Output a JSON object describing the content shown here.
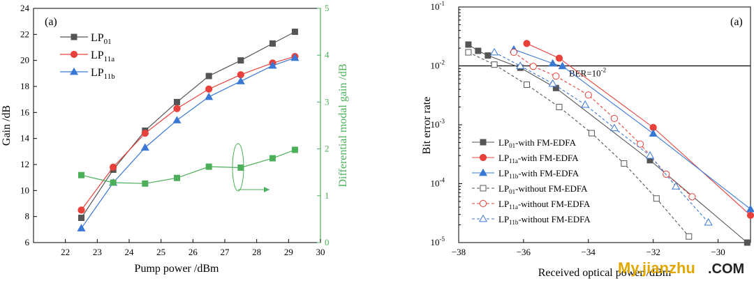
{
  "chart_data": [
    {
      "type": "line",
      "panel_label": "(a)",
      "xlabel": "Pump power /dBm",
      "ylabel": "Gain /dB",
      "y2label": "Differential modal gain /dB",
      "xlim": [
        21,
        30
      ],
      "ylim": [
        6,
        24
      ],
      "y2lim": [
        0,
        5
      ],
      "xticks": [
        22,
        23,
        24,
        25,
        26,
        27,
        28,
        29,
        30
      ],
      "yticks": [
        6,
        8,
        10,
        12,
        14,
        16,
        18,
        20,
        22,
        24
      ],
      "y2ticks": [
        0,
        1,
        2,
        3,
        4,
        5
      ],
      "x": [
        22.5,
        23.5,
        24.5,
        25.5,
        26.5,
        27.5,
        28.5,
        29.2
      ],
      "series": [
        {
          "name": "LP01",
          "name_main": "LP",
          "name_sub": "01",
          "color": "#555555",
          "marker": "square",
          "axis": "left",
          "values": [
            7.9,
            11.6,
            14.6,
            16.8,
            18.8,
            20.0,
            21.3,
            22.2
          ]
        },
        {
          "name": "LP11a",
          "name_main": "LP",
          "name_sub": "11a",
          "color": "#e8403a",
          "marker": "circle",
          "axis": "left",
          "values": [
            8.5,
            11.8,
            14.4,
            16.3,
            17.8,
            18.9,
            19.8,
            20.3
          ]
        },
        {
          "name": "LP11b",
          "name_main": "LP",
          "name_sub": "11b",
          "color": "#3a78d6",
          "marker": "triangle",
          "axis": "left",
          "values": [
            7.1,
            10.6,
            13.3,
            15.4,
            17.2,
            18.4,
            19.6,
            20.2
          ]
        },
        {
          "name": "",
          "color": "#4caf5a",
          "marker": "square",
          "axis": "right",
          "values": [
            1.44,
            1.28,
            1.26,
            1.38,
            1.62,
            1.6,
            1.8,
            1.98
          ]
        }
      ],
      "legend": "top-left",
      "axis_color_right": "#4caf5a"
    },
    {
      "type": "line",
      "panel_label": "(a)",
      "xlabel": "Received optical power /dBm",
      "ylabel": "Bit error rate",
      "xlim": [
        -38,
        -29
      ],
      "ylim_log": [
        -5,
        -1
      ],
      "xticks": [
        -38,
        -36,
        -34,
        -32,
        -30
      ],
      "yticks_exp": [
        -5,
        -4,
        -3,
        -2,
        -1
      ],
      "threshold": {
        "value": 0.01,
        "label_main": "BER=10",
        "label_exp": "-2"
      },
      "series": [
        {
          "name": "LP01-with FM-EDFA",
          "name_main": "LP",
          "name_sub": "01",
          "name_rest": "-with FM-EDFA",
          "color": "#555555",
          "marker": "square",
          "filled": true,
          "dashed": false,
          "x": [
            -37.7,
            -37.4,
            -37.1,
            -36.1,
            -35.0,
            -32.1,
            -29.1
          ],
          "y": [
            0.023,
            0.018,
            0.015,
            0.0093,
            0.0042,
            0.00025,
            1e-05
          ]
        },
        {
          "name": "LP11a-with FM-EDFA",
          "name_main": "LP",
          "name_sub": "11a",
          "name_rest": "-with FM-EDFA",
          "color": "#e8403a",
          "marker": "circle",
          "filled": true,
          "dashed": false,
          "x": [
            -35.9,
            -34.9,
            -32.0,
            -29.0
          ],
          "y": [
            0.024,
            0.0135,
            0.0009,
            2.9e-05
          ]
        },
        {
          "name": "LP11b-with FM-EDFA",
          "name_main": "LP",
          "name_sub": "11b",
          "name_rest": "-with FM-EDFA",
          "color": "#3a78d6",
          "marker": "triangle",
          "filled": true,
          "dashed": false,
          "x": [
            -36.3,
            -35.1,
            -34.8,
            -32.0,
            -29.0
          ],
          "y": [
            0.019,
            0.011,
            0.0099,
            0.00071,
            3.7e-05
          ]
        },
        {
          "name": "LP01-without FM-EDFA",
          "name_main": "LP",
          "name_sub": "01",
          "name_rest": "-without FM-EDFA",
          "color": "#555555",
          "marker": "square",
          "filled": false,
          "dashed": true,
          "x": [
            -37.7,
            -36.9,
            -35.9,
            -34.9,
            -33.9,
            -32.9,
            -31.9,
            -30.9
          ],
          "y": [
            0.017,
            0.0105,
            0.0048,
            0.002,
            0.00072,
            0.00022,
            5.6e-05,
            1.27e-05
          ]
        },
        {
          "name": "LP11a-without FM-EDFA",
          "name_main": "LP",
          "name_sub": "11a",
          "name_rest": "-without FM-EDFA",
          "color": "#e8403a",
          "marker": "circle",
          "filled": false,
          "dashed": true,
          "x": [
            -36.3,
            -35.7,
            -35.0,
            -34.0,
            -33.2,
            -32.4,
            -31.6,
            -30.8
          ],
          "y": [
            0.017,
            0.0098,
            0.0067,
            0.0032,
            0.00128,
            0.00047,
            0.000145,
            6e-05
          ]
        },
        {
          "name": "LP11b-without FM-EDFA",
          "name_main": "LP",
          "name_sub": "11b",
          "name_rest": "-without FM-EDFA",
          "color": "#3a78d6",
          "marker": "triangle",
          "filled": false,
          "dashed": true,
          "x": [
            -36.9,
            -36.1,
            -35.1,
            -34.1,
            -33.2,
            -32.1,
            -31.3,
            -30.3
          ],
          "y": [
            0.017,
            0.01,
            0.005,
            0.0022,
            0.00088,
            0.0003,
            9e-05,
            2.2e-05
          ]
        }
      ],
      "legend": "bottom-left"
    }
  ],
  "watermark": {
    "text": "My.jianzhu",
    "suffix": ".COM",
    "color_main": "#e0a800",
    "color_suffix": "#222222"
  }
}
